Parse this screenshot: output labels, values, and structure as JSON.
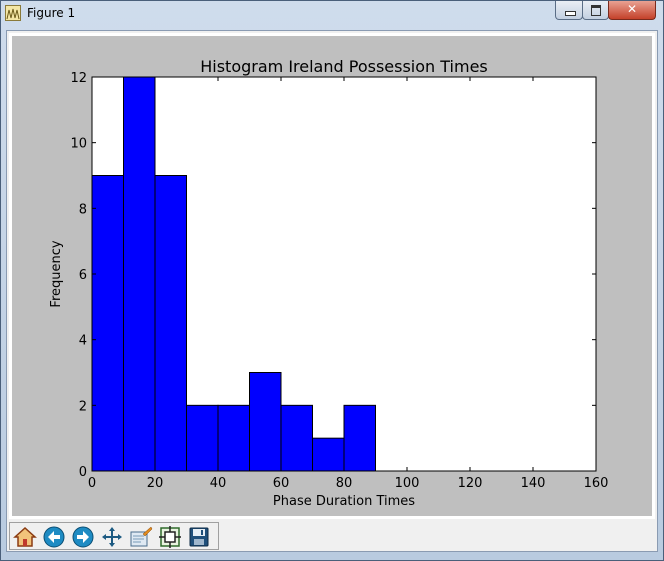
{
  "window": {
    "title": "Figure 1",
    "controls": [
      "minimize",
      "maximize",
      "close"
    ]
  },
  "chart_data": {
    "type": "bar",
    "title": "Histogram Ireland Possession Times",
    "xlabel": "Phase Duration Times",
    "ylabel": "Frequency",
    "bin_edges": [
      0,
      10,
      20,
      30,
      40,
      50,
      60,
      70,
      80,
      90
    ],
    "values": [
      9,
      12,
      9,
      2,
      2,
      3,
      2,
      1,
      2
    ],
    "xlim": [
      0,
      160
    ],
    "ylim": [
      0,
      12
    ],
    "xticks": [
      "0",
      "20",
      "40",
      "60",
      "80",
      "100",
      "120",
      "140",
      "160"
    ],
    "yticks": [
      "0",
      "2",
      "4",
      "6",
      "8",
      "10",
      "12"
    ],
    "bar_color": "#0000ff",
    "edge_color": "#000000",
    "grid": false
  },
  "toolbar": {
    "buttons": [
      {
        "name": "home-button",
        "icon": "home-icon"
      },
      {
        "name": "back-button",
        "icon": "back-arrow-icon"
      },
      {
        "name": "forward-button",
        "icon": "forward-arrow-icon"
      },
      {
        "name": "pan-button",
        "icon": "move-icon"
      },
      {
        "name": "zoom-button",
        "icon": "zoom-rect-icon"
      },
      {
        "name": "configure-subplots-button",
        "icon": "subplots-icon"
      },
      {
        "name": "save-button",
        "icon": "floppy-disk-icon"
      }
    ]
  }
}
